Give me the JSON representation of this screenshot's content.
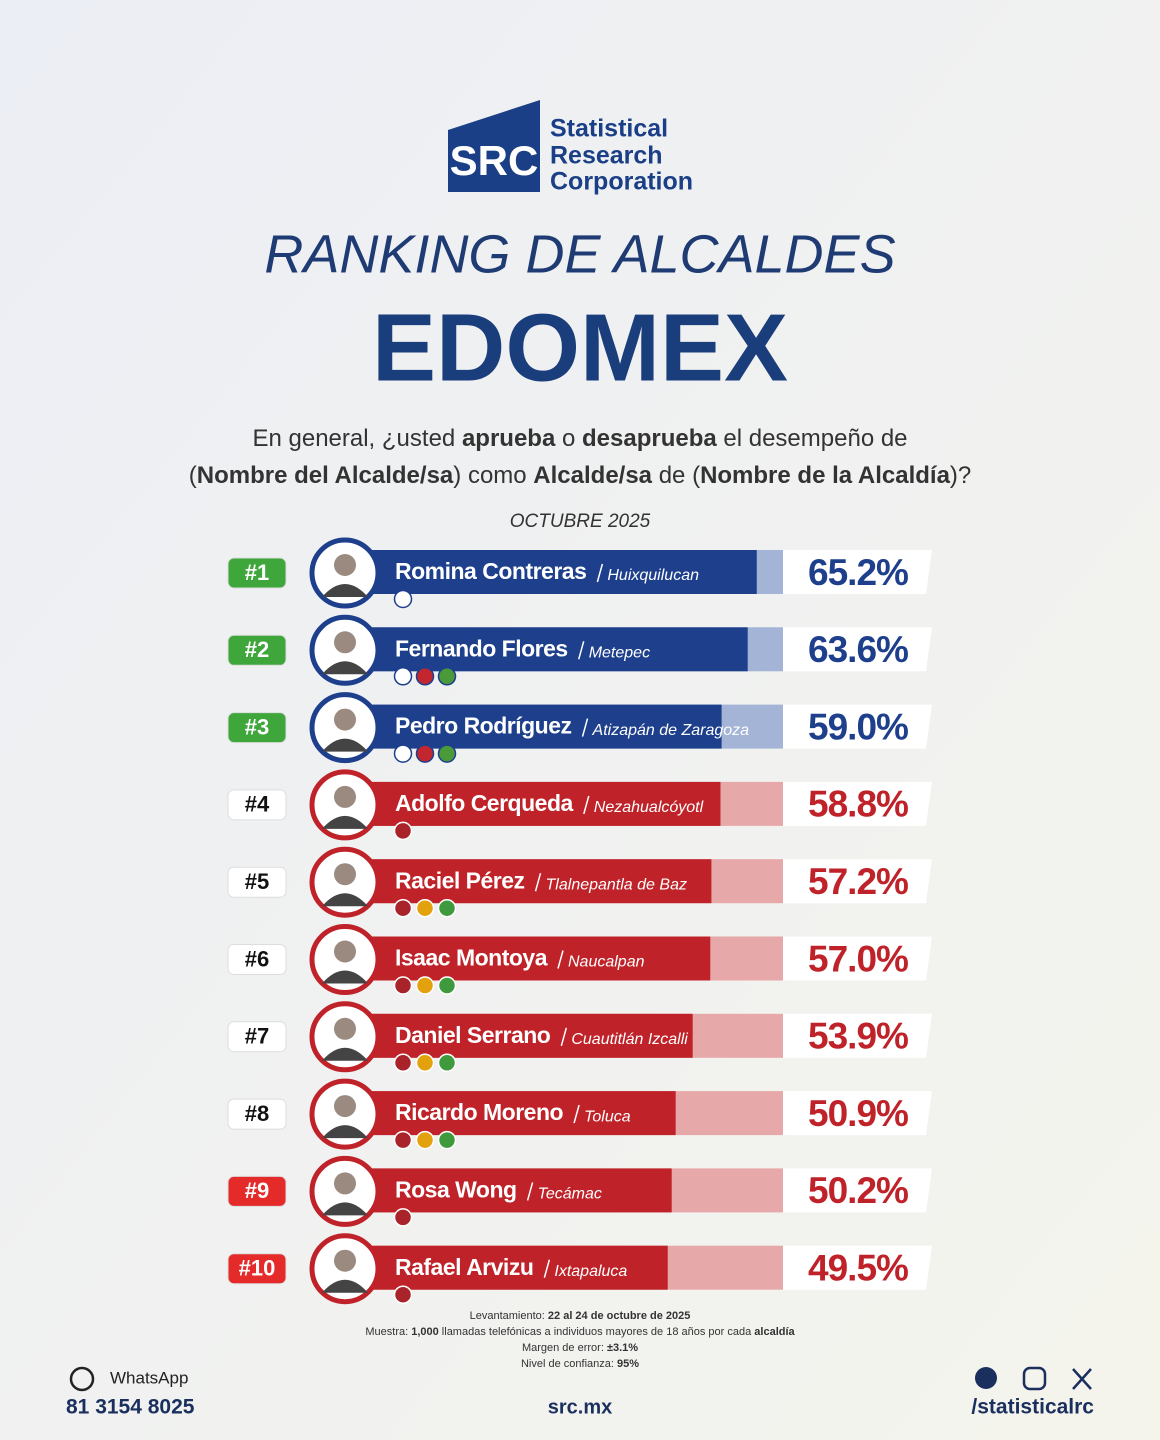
{
  "logo": {
    "mark": "SRC",
    "lines": [
      "Statistical",
      "Research",
      "Corporation"
    ]
  },
  "header": {
    "title": "RANKING DE ALCALDES",
    "subtitle": "EDOMEX"
  },
  "question": {
    "line1": [
      "En general, ¿usted ",
      "aprueba",
      " o ",
      "desaprueba",
      " el desempeño de"
    ],
    "line2": [
      "(",
      "Nombre del Alcalde/sa",
      ") como ",
      "Alcalde/sa",
      " de (",
      "Nombre de la Alcaldía",
      ")?"
    ]
  },
  "period": "OCTUBRE 2025",
  "chart_data": {
    "type": "bar",
    "orientation": "horizontal",
    "xlim": [
      0,
      70
    ],
    "ranks": [
      "#1",
      "#2",
      "#3",
      "#4",
      "#5",
      "#6",
      "#7",
      "#8",
      "#9",
      "#10"
    ],
    "categories": [
      "Romina Contreras",
      "Fernando Flores",
      "Pedro Rodríguez",
      "Adolfo Cerqueda",
      "Raciel Pérez",
      "Isaac Montoya",
      "Daniel Serrano",
      "Ricardo Moreno",
      "Rosa Wong",
      "Rafael Arvizu"
    ],
    "municipalities": [
      "Huixquilucan",
      "Metepec",
      "Atizapán de Zaragoza",
      "Nezahualcóyotl",
      "Tlalnepantla de Baz",
      "Naucalpan",
      "Cuautitlán Izcalli",
      "Toluca",
      "Tecámac",
      "Ixtapaluca"
    ],
    "values": [
      65.2,
      63.6,
      59.0,
      58.8,
      57.2,
      57.0,
      53.9,
      50.9,
      50.2,
      49.5
    ],
    "value_labels": [
      "65.2%",
      "63.6%",
      "59.0%",
      "58.8%",
      "57.2%",
      "57.0%",
      "53.9%",
      "50.9%",
      "50.2%",
      "49.5%"
    ],
    "colors": [
      "#1d3f8c",
      "#1d3f8c",
      "#1d3f8c",
      "#bf2329",
      "#bf2329",
      "#bf2329",
      "#bf2329",
      "#bf2329",
      "#bf2329",
      "#bf2329"
    ],
    "track_colors": [
      "#a4b4d6",
      "#a4b4d6",
      "#a4b4d6",
      "#e7a8a9",
      "#e7a8a9",
      "#e7a8a9",
      "#e7a8a9",
      "#e7a8a9",
      "#e7a8a9",
      "#e7a8a9"
    ],
    "badge_colors": [
      "#3ea63b",
      "#3ea63b",
      "#3ea63b",
      "#ffffff",
      "#ffffff",
      "#ffffff",
      "#ffffff",
      "#ffffff",
      "#e52a2a",
      "#e52a2a"
    ],
    "party_counts": [
      1,
      3,
      3,
      1,
      3,
      3,
      3,
      3,
      1,
      1
    ]
  },
  "methodology": [
    [
      "Levantamiento: ",
      "22 al 24 de octubre de 2025"
    ],
    [
      "Muestra: ",
      "1,000",
      " llamadas telefónicas a individuos mayores de 18 años por cada ",
      "alcaldía"
    ],
    [
      "Margen de error: ",
      "±3.1%"
    ],
    [
      "Nivel de confianza: ",
      "95%"
    ]
  ],
  "footer": {
    "whatsapp": "WhatsApp",
    "phone": "81 3154 8025",
    "site": "src.mx",
    "social": "/statisticalrc"
  }
}
